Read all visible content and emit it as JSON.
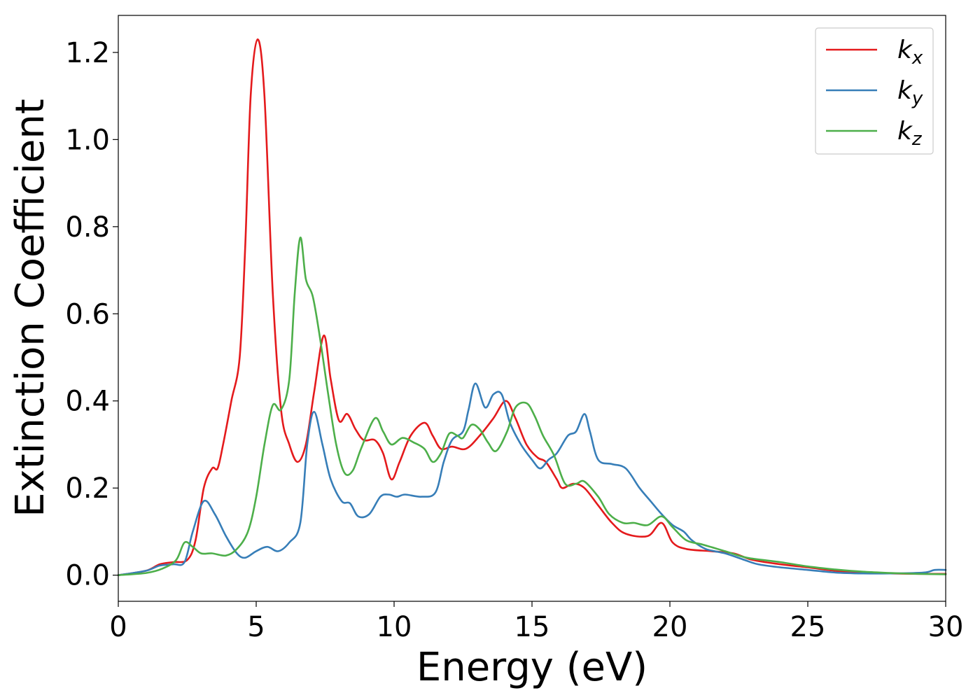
{
  "chart_data": {
    "type": "line",
    "xlabel": "Energy (eV)",
    "ylabel": "Extinction Coefficient",
    "xlim": [
      0,
      30
    ],
    "ylim": [
      -0.06,
      1.285
    ],
    "xticks": [
      0,
      5,
      10,
      15,
      20,
      25,
      30
    ],
    "xtick_labels": [
      "0",
      "5",
      "10",
      "15",
      "20",
      "25",
      "30"
    ],
    "yticks": [
      0.0,
      0.2,
      0.4,
      0.6,
      0.8,
      1.0,
      1.2
    ],
    "ytick_labels": [
      "0.0",
      "0.2",
      "0.4",
      "0.6",
      "0.8",
      "1.0",
      "1.2"
    ],
    "grid": false,
    "legend_position": "top-right",
    "series": [
      {
        "name": "k",
        "subscript": "x",
        "color": "#e41a1c",
        "points": [
          [
            0,
            0
          ],
          [
            1,
            0.01
          ],
          [
            1.5,
            0.025
          ],
          [
            2,
            0.03
          ],
          [
            2.5,
            0.035
          ],
          [
            2.8,
            0.08
          ],
          [
            3.1,
            0.2
          ],
          [
            3.4,
            0.245
          ],
          [
            3.6,
            0.245
          ],
          [
            3.8,
            0.3
          ],
          [
            4.1,
            0.4
          ],
          [
            4.4,
            0.5
          ],
          [
            4.6,
            0.75
          ],
          [
            4.8,
            1.1
          ],
          [
            5.05,
            1.23
          ],
          [
            5.3,
            1.1
          ],
          [
            5.6,
            0.65
          ],
          [
            5.9,
            0.38
          ],
          [
            6.2,
            0.3
          ],
          [
            6.5,
            0.26
          ],
          [
            6.8,
            0.3
          ],
          [
            7.1,
            0.42
          ],
          [
            7.45,
            0.55
          ],
          [
            7.7,
            0.45
          ],
          [
            8,
            0.355
          ],
          [
            8.3,
            0.37
          ],
          [
            8.6,
            0.335
          ],
          [
            8.9,
            0.31
          ],
          [
            9.3,
            0.31
          ],
          [
            9.6,
            0.28
          ],
          [
            9.9,
            0.22
          ],
          [
            10.2,
            0.26
          ],
          [
            10.6,
            0.32
          ],
          [
            11.1,
            0.35
          ],
          [
            11.4,
            0.32
          ],
          [
            11.7,
            0.29
          ],
          [
            12.1,
            0.295
          ],
          [
            12.6,
            0.29
          ],
          [
            13.1,
            0.32
          ],
          [
            13.6,
            0.36
          ],
          [
            14.05,
            0.4
          ],
          [
            14.4,
            0.36
          ],
          [
            14.8,
            0.3
          ],
          [
            15.2,
            0.27
          ],
          [
            15.5,
            0.26
          ],
          [
            15.9,
            0.22
          ],
          [
            16.1,
            0.2
          ],
          [
            16.5,
            0.21
          ],
          [
            16.9,
            0.2
          ],
          [
            17.4,
            0.16
          ],
          [
            17.9,
            0.12
          ],
          [
            18.4,
            0.095
          ],
          [
            19.2,
            0.09
          ],
          [
            19.7,
            0.12
          ],
          [
            20.1,
            0.075
          ],
          [
            20.6,
            0.06
          ],
          [
            21.5,
            0.055
          ],
          [
            22.3,
            0.05
          ],
          [
            23,
            0.035
          ],
          [
            24,
            0.025
          ],
          [
            25,
            0.018
          ],
          [
            26,
            0.01
          ],
          [
            27,
            0.006
          ],
          [
            28,
            0.004
          ],
          [
            29,
            0.003
          ],
          [
            30,
            0.003
          ]
        ]
      },
      {
        "name": "k",
        "subscript": "y",
        "color": "#377eb8",
        "points": [
          [
            0,
            0
          ],
          [
            1,
            0.01
          ],
          [
            1.5,
            0.022
          ],
          [
            2,
            0.025
          ],
          [
            2.4,
            0.03
          ],
          [
            2.7,
            0.1
          ],
          [
            3.1,
            0.17
          ],
          [
            3.5,
            0.14
          ],
          [
            3.9,
            0.09
          ],
          [
            4.3,
            0.05
          ],
          [
            4.6,
            0.04
          ],
          [
            5,
            0.055
          ],
          [
            5.4,
            0.065
          ],
          [
            5.8,
            0.055
          ],
          [
            6.2,
            0.075
          ],
          [
            6.6,
            0.12
          ],
          [
            6.85,
            0.3
          ],
          [
            7.1,
            0.375
          ],
          [
            7.4,
            0.3
          ],
          [
            7.7,
            0.22
          ],
          [
            8.1,
            0.17
          ],
          [
            8.4,
            0.165
          ],
          [
            8.7,
            0.135
          ],
          [
            9.1,
            0.14
          ],
          [
            9.5,
            0.18
          ],
          [
            9.8,
            0.185
          ],
          [
            10.1,
            0.18
          ],
          [
            10.4,
            0.185
          ],
          [
            11,
            0.18
          ],
          [
            11.5,
            0.19
          ],
          [
            11.8,
            0.26
          ],
          [
            12.1,
            0.31
          ],
          [
            12.5,
            0.33
          ],
          [
            12.7,
            0.38
          ],
          [
            12.95,
            0.44
          ],
          [
            13.3,
            0.385
          ],
          [
            13.6,
            0.415
          ],
          [
            13.9,
            0.415
          ],
          [
            14.2,
            0.35
          ],
          [
            14.6,
            0.3
          ],
          [
            15,
            0.265
          ],
          [
            15.3,
            0.245
          ],
          [
            15.6,
            0.265
          ],
          [
            15.9,
            0.28
          ],
          [
            16.3,
            0.32
          ],
          [
            16.6,
            0.33
          ],
          [
            16.9,
            0.37
          ],
          [
            17.1,
            0.33
          ],
          [
            17.4,
            0.265
          ],
          [
            17.9,
            0.255
          ],
          [
            18.4,
            0.245
          ],
          [
            18.9,
            0.2
          ],
          [
            19.3,
            0.17
          ],
          [
            19.7,
            0.14
          ],
          [
            20.1,
            0.115
          ],
          [
            20.5,
            0.1
          ],
          [
            20.8,
            0.08
          ],
          [
            21.3,
            0.06
          ],
          [
            22,
            0.05
          ],
          [
            22.7,
            0.035
          ],
          [
            23.2,
            0.025
          ],
          [
            24,
            0.018
          ],
          [
            25,
            0.012
          ],
          [
            26,
            0.006
          ],
          [
            27,
            0.004
          ],
          [
            28,
            0.004
          ],
          [
            29.2,
            0.006
          ],
          [
            29.6,
            0.012
          ],
          [
            30,
            0.012
          ]
        ]
      },
      {
        "name": "k",
        "subscript": "z",
        "color": "#4daf4a",
        "points": [
          [
            0,
            0
          ],
          [
            1,
            0.005
          ],
          [
            1.6,
            0.015
          ],
          [
            2.1,
            0.035
          ],
          [
            2.4,
            0.075
          ],
          [
            2.7,
            0.065
          ],
          [
            3,
            0.05
          ],
          [
            3.4,
            0.05
          ],
          [
            3.9,
            0.045
          ],
          [
            4.3,
            0.06
          ],
          [
            4.7,
            0.1
          ],
          [
            5,
            0.18
          ],
          [
            5.3,
            0.3
          ],
          [
            5.6,
            0.39
          ],
          [
            5.9,
            0.38
          ],
          [
            6.2,
            0.45
          ],
          [
            6.4,
            0.65
          ],
          [
            6.6,
            0.775
          ],
          [
            6.8,
            0.68
          ],
          [
            7.05,
            0.64
          ],
          [
            7.3,
            0.55
          ],
          [
            7.6,
            0.42
          ],
          [
            7.9,
            0.3
          ],
          [
            8.2,
            0.235
          ],
          [
            8.5,
            0.24
          ],
          [
            8.8,
            0.29
          ],
          [
            9.3,
            0.36
          ],
          [
            9.6,
            0.33
          ],
          [
            9.9,
            0.3
          ],
          [
            10.3,
            0.315
          ],
          [
            10.7,
            0.305
          ],
          [
            11.1,
            0.29
          ],
          [
            11.4,
            0.26
          ],
          [
            11.7,
            0.28
          ],
          [
            12,
            0.325
          ],
          [
            12.3,
            0.32
          ],
          [
            12.5,
            0.315
          ],
          [
            12.8,
            0.345
          ],
          [
            13.1,
            0.335
          ],
          [
            13.4,
            0.305
          ],
          [
            13.7,
            0.285
          ],
          [
            14.1,
            0.33
          ],
          [
            14.4,
            0.385
          ],
          [
            14.8,
            0.395
          ],
          [
            15.1,
            0.365
          ],
          [
            15.4,
            0.32
          ],
          [
            15.8,
            0.275
          ],
          [
            16.2,
            0.21
          ],
          [
            16.6,
            0.21
          ],
          [
            16.9,
            0.215
          ],
          [
            17.4,
            0.18
          ],
          [
            17.8,
            0.14
          ],
          [
            18.3,
            0.12
          ],
          [
            18.7,
            0.12
          ],
          [
            19.2,
            0.115
          ],
          [
            19.7,
            0.135
          ],
          [
            20.1,
            0.11
          ],
          [
            20.6,
            0.08
          ],
          [
            21.2,
            0.07
          ],
          [
            22,
            0.055
          ],
          [
            22.8,
            0.04
          ],
          [
            24,
            0.03
          ],
          [
            25,
            0.02
          ],
          [
            26,
            0.013
          ],
          [
            27,
            0.008
          ],
          [
            28,
            0.005
          ],
          [
            29,
            0.003
          ],
          [
            30,
            0.002
          ]
        ]
      }
    ]
  }
}
